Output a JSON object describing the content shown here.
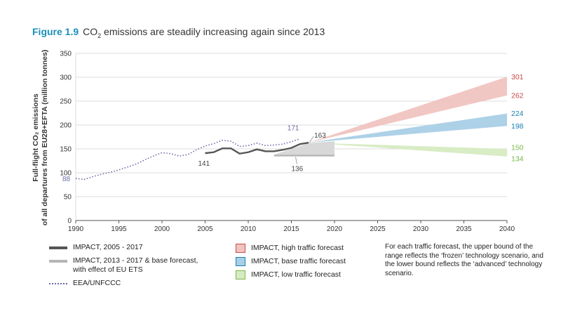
{
  "header": {
    "figure_label": "Figure 1.9",
    "title_pre": "CO",
    "title_sub": "2",
    "title_post": " emissions are steadily increasing again since 2013"
  },
  "chart_data": {
    "type": "line",
    "ylabel_line1": "Full-flight CO₂ emissions",
    "ylabel_line2": "of all departures from EU28+EFTA (million tonnes)",
    "xlim": [
      1990,
      2040
    ],
    "ylim": [
      0,
      350
    ],
    "x_ticks": [
      1990,
      1995,
      2000,
      2005,
      2010,
      2015,
      2020,
      2025,
      2030,
      2035,
      2040
    ],
    "y_ticks": [
      0,
      50,
      100,
      150,
      200,
      250,
      300,
      350
    ],
    "colors": {
      "dark": "#555555",
      "light": "#b5b5b5",
      "dotted": "#6a6aa8",
      "high_fill": "#f0c4c0",
      "high_text": "#c84a4a",
      "base_fill": "#a9cfe6",
      "base_text": "#1a7fb0",
      "low_fill": "#d6ebc2",
      "low_text": "#7ab84a",
      "grey_fill": "#d8d8d8"
    },
    "series": [
      {
        "name": "EEA/UNFCCC",
        "style": "dotted",
        "points": [
          [
            1990,
            88
          ],
          [
            1991,
            86
          ],
          [
            1992,
            92
          ],
          [
            1993,
            97
          ],
          [
            1994,
            101
          ],
          [
            1995,
            106
          ],
          [
            1996,
            112
          ],
          [
            1997,
            118
          ],
          [
            1998,
            127
          ],
          [
            1999,
            135
          ],
          [
            2000,
            142
          ],
          [
            2001,
            140
          ],
          [
            2002,
            135
          ],
          [
            2003,
            138
          ],
          [
            2004,
            148
          ],
          [
            2005,
            156
          ],
          [
            2006,
            161
          ],
          [
            2007,
            168
          ],
          [
            2008,
            166
          ],
          [
            2009,
            155
          ],
          [
            2010,
            157
          ],
          [
            2011,
            162
          ],
          [
            2012,
            157
          ],
          [
            2013,
            158
          ],
          [
            2014,
            160
          ],
          [
            2015,
            165
          ],
          [
            2016,
            171
          ]
        ]
      },
      {
        "name": "IMPACT, 2005 - 2017",
        "style": "dark",
        "points": [
          [
            2005,
            141
          ],
          [
            2006,
            143
          ],
          [
            2007,
            151
          ],
          [
            2008,
            151
          ],
          [
            2009,
            140
          ],
          [
            2010,
            143
          ],
          [
            2011,
            149
          ],
          [
            2012,
            145
          ],
          [
            2013,
            145
          ],
          [
            2014,
            148
          ],
          [
            2015,
            152
          ],
          [
            2016,
            160
          ],
          [
            2017,
            163
          ]
        ]
      },
      {
        "name": "IMPACT, 2013 - 2017 & base forecast, with effect of EU ETS",
        "style": "light",
        "points": [
          [
            2013,
            136
          ],
          [
            2015,
            136
          ],
          [
            2017,
            136
          ],
          [
            2020,
            136
          ]
        ]
      }
    ],
    "bands": [
      {
        "name": "IMPACT, high traffic forecast",
        "start": [
          2017,
          163
        ],
        "end_upper": 301,
        "end_lower": 262,
        "fill": "high"
      },
      {
        "name": "IMPACT, base traffic forecast",
        "start": [
          2017,
          163
        ],
        "end_upper": 224,
        "end_lower": 198,
        "fill": "base"
      },
      {
        "name": "IMPACT, low traffic forecast",
        "start": [
          2017,
          163
        ],
        "end_upper": 150,
        "end_lower": 134,
        "fill": "low"
      }
    ],
    "grey_band": {
      "x": [
        2013,
        2020
      ],
      "upper": [
        [
          2013,
          138
        ],
        [
          2017,
          162
        ],
        [
          2020,
          166
        ]
      ],
      "lower": 136
    },
    "annotations": [
      {
        "text": "88",
        "x": 1990,
        "y": 88,
        "color": "dotted"
      },
      {
        "text": "141",
        "x": 2005,
        "y": 141,
        "color": "dark"
      },
      {
        "text": "171",
        "x": 2016,
        "y": 171,
        "color": "dotted"
      },
      {
        "text": "163",
        "x": 2017,
        "y": 163,
        "color": "dark"
      },
      {
        "text": "136",
        "x": 2015,
        "y": 136,
        "color": "dark"
      }
    ],
    "end_labels": [
      {
        "text": "301",
        "y": 301,
        "color": "high_text"
      },
      {
        "text": "262",
        "y": 262,
        "color": "high_text"
      },
      {
        "text": "224",
        "y": 224,
        "color": "base_text"
      },
      {
        "text": "198",
        "y": 198,
        "color": "base_text"
      },
      {
        "text": "150",
        "y": 150,
        "color": "low_text"
      },
      {
        "text": "134",
        "y": 134,
        "color": "low_text"
      }
    ]
  },
  "legend": {
    "col1": [
      {
        "label": "IMPACT, 2005 - 2017"
      },
      {
        "label": "IMPACT, 2013 - 2017 & base forecast,",
        "label2": "with effect of EU ETS"
      },
      {
        "label": "EEA/UNFCCC"
      }
    ],
    "col2": [
      {
        "label": "IMPACT, high traffic forecast"
      },
      {
        "label": "IMPACT, base traffic forecast"
      },
      {
        "label": "IMPACT, low traffic forecast"
      }
    ]
  },
  "note": "For each traffic forecast, the upper bound of the range reflects the ‘frozen’ technology scenario, and the lower bound reflects the ‘advanced’ technology scenario."
}
